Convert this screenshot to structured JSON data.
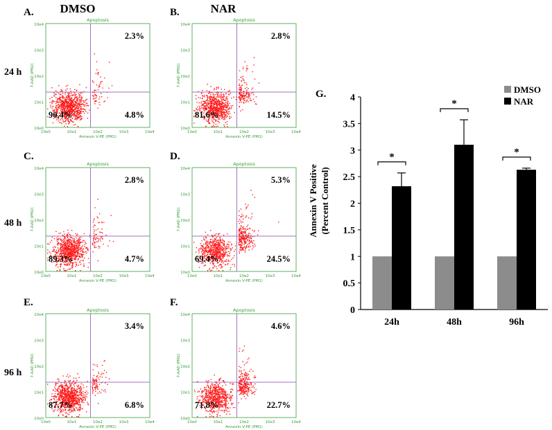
{
  "figure": {
    "column_headers": [
      "DMSO",
      "NAR"
    ],
    "row_labels": [
      "24 h",
      "48 h",
      "96 h"
    ],
    "panel_title": "Apoptosis",
    "x_axis_label": "Annexin V-PE (PM1)",
    "y_axis_label": "7-AAD (PM2)",
    "x_ticks": [
      "10e0",
      "10e1",
      "10e2",
      "10e3",
      "10e4"
    ],
    "y_ticks": [
      "10e4",
      "10e3",
      "10e2",
      "10e1",
      "10e0"
    ],
    "dot_color": "#ff1a1a",
    "gate_color": "#a070c0",
    "axis_text_color": "#3a9a3a"
  },
  "flow_panels": [
    {
      "letter": "A.",
      "condition": "DMSO",
      "time": "24 h",
      "upper_right": "2.3%",
      "lower_left": "90.4%",
      "lower_right": "4.8%"
    },
    {
      "letter": "B.",
      "condition": "NAR",
      "time": "24 h",
      "upper_right": "2.8%",
      "lower_left": "81.6%",
      "lower_right": "14.5%"
    },
    {
      "letter": "C.",
      "condition": "DMSO",
      "time": "48 h",
      "upper_right": "2.8%",
      "lower_left": "89.3%",
      "lower_right": "4.7%"
    },
    {
      "letter": "D.",
      "condition": "NAR",
      "time": "48 h",
      "upper_right": "5.3%",
      "lower_left": "69.4%",
      "lower_right": "24.5%"
    },
    {
      "letter": "E.",
      "condition": "DMSO",
      "time": "96 h",
      "upper_right": "3.4%",
      "lower_left": "87.7%",
      "lower_right": "6.8%"
    },
    {
      "letter": "F.",
      "condition": "NAR",
      "time": "96 h",
      "upper_right": "4.6%",
      "lower_left": "71.8%",
      "lower_right": "22.7%"
    }
  ],
  "chart_data": {
    "type": "bar",
    "panel_letter": "G.",
    "categories": [
      "24h",
      "48h",
      "96h"
    ],
    "series": [
      {
        "name": "DMSO",
        "values": [
          1,
          1,
          1
        ],
        "errors": [
          0,
          0,
          0
        ],
        "color": "#8c8c8c"
      },
      {
        "name": "NAR",
        "values": [
          2.32,
          3.1,
          2.63
        ],
        "errors": [
          0.25,
          0.47,
          0.03
        ],
        "color": "#000000"
      }
    ],
    "significance": [
      "*",
      "*",
      "*"
    ],
    "ylabel_line1": "Annexin V Positive",
    "ylabel_line2": "(Percent Control)",
    "xlabel": "",
    "ylim": [
      0,
      4
    ],
    "yticks": [
      0,
      0.5,
      1,
      1.5,
      2,
      2.5,
      3,
      3.5,
      4
    ],
    "legend_position": "top-right",
    "grid": false
  }
}
